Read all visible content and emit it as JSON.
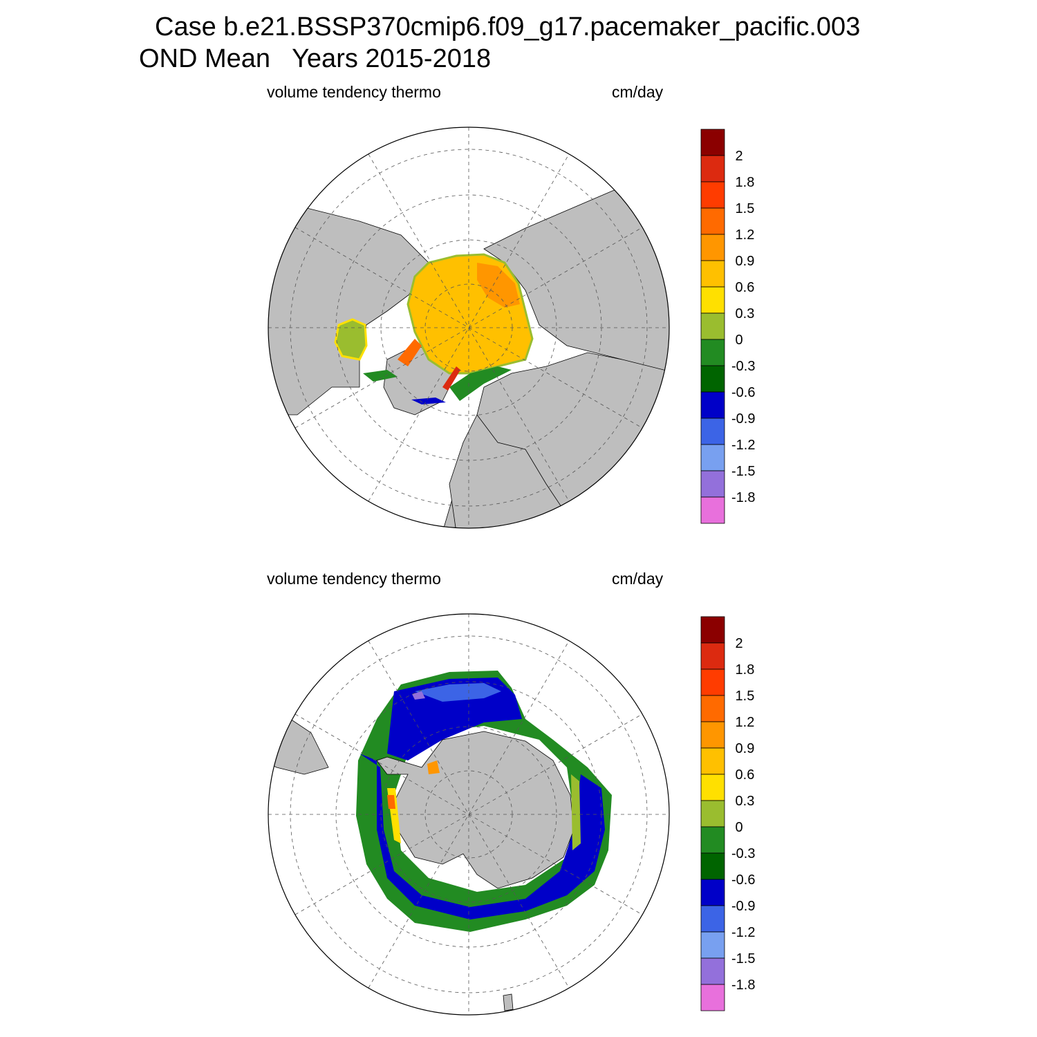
{
  "header": {
    "case_line": "Case b.e21.BSSP370cmip6.f09_g17.pacemaker_pacific.003",
    "period_label": "OND Mean",
    "years_label": "Years 2015-2018"
  },
  "panels": [
    {
      "variable": "volume tendency thermo",
      "units": "cm/day",
      "hemisphere": "north"
    },
    {
      "variable": "volume tendency thermo",
      "units": "cm/day",
      "hemisphere": "south"
    }
  ],
  "colors": {
    "land": "#bebebe",
    "ocean": "#ffffff",
    "grid": "#555555"
  },
  "chart_data": {
    "type": "heatmap",
    "map_projection": "polar stereographic",
    "colorbar": {
      "tick_labels": [
        "2",
        "1.8",
        "1.5",
        "1.2",
        "0.9",
        "0.6",
        "0.3",
        "0",
        "-0.3",
        "-0.6",
        "-0.9",
        "-1.2",
        "-1.5",
        "-1.8"
      ],
      "colors_top_to_bottom": [
        "#8b0000",
        "#dc2a10",
        "#ff3c00",
        "#ff6a00",
        "#ff9600",
        "#ffc000",
        "#ffe000",
        "#9abd2f",
        "#228b22",
        "#006400",
        "#0000c8",
        "#3c64e6",
        "#78a0f0",
        "#9370db",
        "#e870dc"
      ]
    }
  }
}
